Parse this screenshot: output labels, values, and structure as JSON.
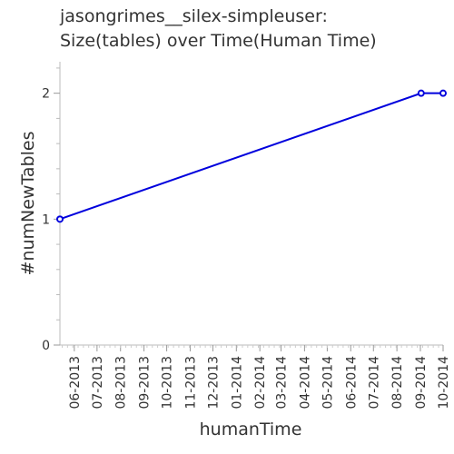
{
  "chart_data": {
    "type": "line",
    "title_lines": [
      "jasongrimes__silex-simpleuser:",
      "Size(tables) over Time(Human Time)"
    ],
    "xlabel": "humanTime",
    "ylabel": "#numNewTables",
    "x_tick_labels": [
      "06-2013",
      "07-2013",
      "08-2013",
      "09-2013",
      "10-2013",
      "11-2013",
      "12-2013",
      "01-2014",
      "02-2014",
      "03-2014",
      "04-2014",
      "05-2014",
      "06-2014",
      "07-2014",
      "08-2014",
      "09-2014",
      "10-2014"
    ],
    "y_ticks": [
      0,
      1,
      2
    ],
    "ylim": [
      0,
      2.25
    ],
    "grid": false,
    "series": [
      {
        "color": "#0000dd",
        "points": [
          {
            "x": "2013-05-13",
            "y": 1
          },
          {
            "x": "2014-09-02",
            "y": 2
          },
          {
            "x": "2014-10-01",
            "y": 2
          }
        ]
      }
    ]
  }
}
